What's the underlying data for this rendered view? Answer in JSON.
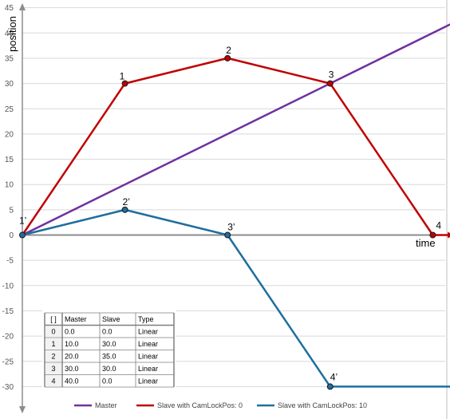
{
  "chart_data": {
    "type": "line",
    "xlabel": "time",
    "ylabel": "position",
    "ylim": [
      -32,
      45
    ],
    "xlim": [
      0,
      42
    ],
    "y_ticks": [
      45,
      40,
      35,
      30,
      25,
      20,
      15,
      10,
      5,
      0,
      -5,
      -10,
      -15,
      -20,
      -25,
      -30
    ],
    "grid": "horizontal",
    "legend_position": "bottom",
    "series": [
      {
        "name": "Master",
        "color": "#7030a0",
        "x": [
          0,
          42
        ],
        "y": [
          0,
          42
        ],
        "marker": false
      },
      {
        "name": "Slave with CamLockPos: 0",
        "color": "#c00000",
        "x": [
          0,
          10,
          20,
          30,
          40,
          42
        ],
        "y": [
          0,
          30,
          35,
          30,
          0,
          0
        ],
        "marker": true,
        "point_labels": [
          "",
          "1",
          "2",
          "3",
          "4",
          ""
        ],
        "arrow_end": true
      },
      {
        "name": "Slave with CamLockPos: 10",
        "color": "#1f6e9e",
        "x": [
          0,
          10,
          20,
          30,
          42
        ],
        "y": [
          0,
          5,
          0,
          -30,
          -30
        ],
        "marker": true,
        "point_labels": [
          "1’",
          "2’",
          "3’",
          "4’",
          ""
        ]
      }
    ],
    "table": {
      "headers": [
        "[ ]",
        "Master",
        "Slave",
        "Type"
      ],
      "rows": [
        [
          "0",
          "0.0",
          "0.0",
          "Linear"
        ],
        [
          "1",
          "10.0",
          "30.0",
          "Linear"
        ],
        [
          "2",
          "20.0",
          "35.0",
          "Linear"
        ],
        [
          "3",
          "30.0",
          "30.0",
          "Linear"
        ],
        [
          "4",
          "40.0",
          "0.0",
          "Linear"
        ]
      ]
    }
  }
}
